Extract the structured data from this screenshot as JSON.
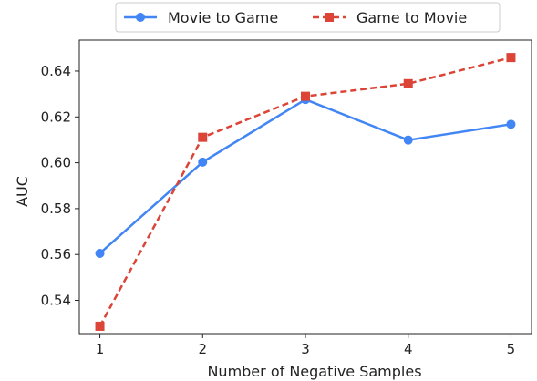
{
  "chart_data": {
    "type": "line",
    "xlabel": "Number of Negative Samples",
    "ylabel": "AUC",
    "x": [
      1,
      2,
      3,
      4,
      5
    ],
    "xticks": [
      "1",
      "2",
      "3",
      "4",
      "5"
    ],
    "xlim": [
      0.8,
      5.2
    ],
    "ylim": [
      0.5255,
      0.6535
    ],
    "yticks": [
      "0.54",
      "0.56",
      "0.58",
      "0.60",
      "0.62",
      "0.64"
    ],
    "grid": false,
    "legend_position": "top-center, above plot",
    "series": [
      {
        "name": "Movie to Game",
        "values": [
          0.5605,
          0.6003,
          0.6276,
          0.6099,
          0.6168
        ],
        "color": "#4285f4",
        "line_style": "solid",
        "marker": "circle"
      },
      {
        "name": "Game to Movie",
        "values": [
          0.5287,
          0.6111,
          0.629,
          0.6345,
          0.6459
        ],
        "color": "#db4437",
        "line_style": "dashed",
        "marker": "square"
      }
    ]
  }
}
